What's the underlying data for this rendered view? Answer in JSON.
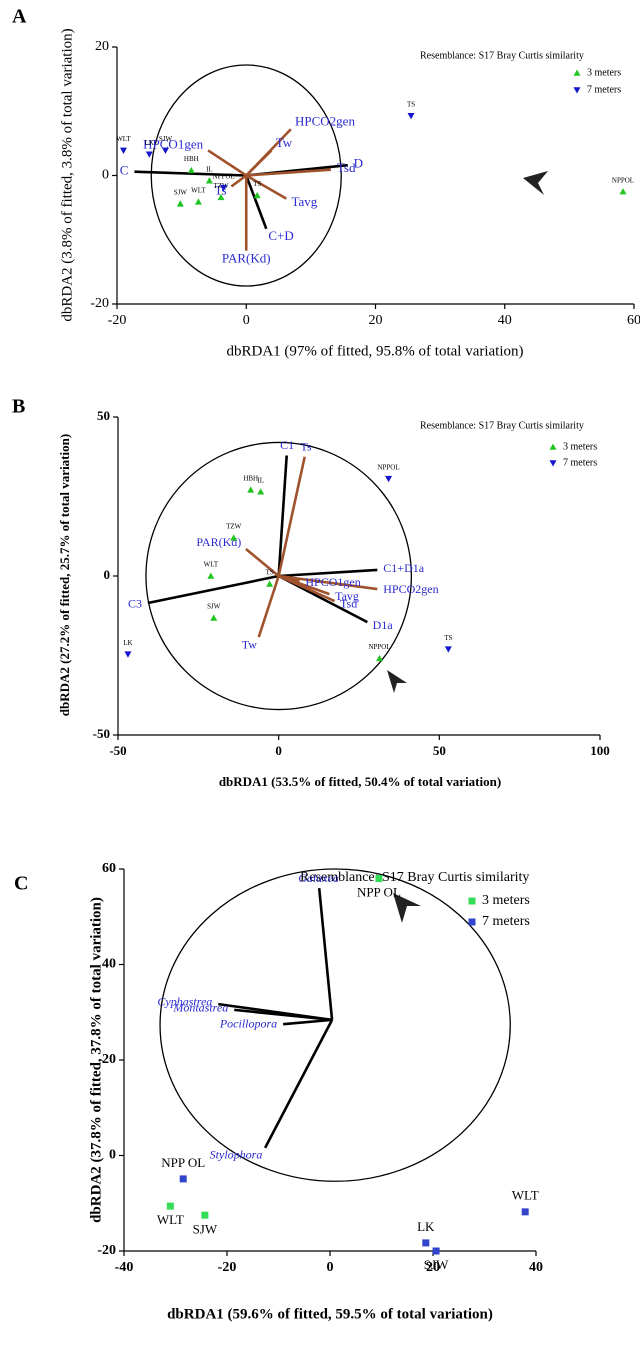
{
  "chart_data": [
    {
      "type": "scatter",
      "panel_label": "A",
      "title": "Resemblance: S17 Bray Curtis similarity",
      "xlabel": "dbRDA1 (97% of fitted, 95.8% of total variation)",
      "ylabel": "dbRDA2 (3.8% of fitted, 3.8% of total variation)",
      "xlim": [
        -20,
        60
      ],
      "ylim": [
        -20,
        20
      ],
      "xticks": [
        -20,
        0,
        20,
        40,
        60
      ],
      "yticks": [
        -20,
        0,
        20
      ],
      "circle": {
        "x": 0,
        "y": 0,
        "rx": 14.7,
        "ry": 17.2
      },
      "origin": [
        0,
        0
      ],
      "series": [
        {
          "name": "3 meters",
          "color": "#22c422",
          "marker": "triangle-up",
          "labels": [
            "HBH",
            "IL",
            "SJW",
            "WLT",
            "TZW",
            "TS",
            "NPPOL"
          ],
          "x": [
            -8.5,
            -5.7,
            -10.2,
            -7.4,
            -3.9,
            1.7,
            58.3
          ],
          "values": [
            0.8,
            -0.8,
            -4.4,
            -4.1,
            -3.4,
            -3.1,
            -2.5
          ]
        },
        {
          "name": "7 meters",
          "color": "#1515cc",
          "marker": "triangle-down",
          "labels": [
            "WLT",
            "LK",
            "SJW",
            "TS",
            "NPPOL"
          ],
          "x": [
            -19,
            -15,
            -12.5,
            25.5,
            -3.5
          ],
          "values": [
            3.9,
            3.3,
            3.9,
            9.3,
            -1.9
          ]
        }
      ],
      "vectors": [
        {
          "name": "C",
          "color": "#000000",
          "x": -17.3,
          "y": 0.6
        },
        {
          "name": "D",
          "color": "#000000",
          "x": 15.7,
          "y": 1.6
        },
        {
          "name": "C+D",
          "color": "#000000",
          "x": 3.1,
          "y": -8.3
        },
        {
          "name": "HPCO2gen",
          "color": "#a0522d",
          "x": 6.9,
          "y": 7.2
        },
        {
          "name": "HPCO1gen",
          "color": "#a0522d",
          "x": -5.9,
          "y": 3.9
        },
        {
          "name": "Tw",
          "color": "#a0522d",
          "x": 3.9,
          "y": 3.9
        },
        {
          "name": "Tsd",
          "color": "#a0522d",
          "x": 13.1,
          "y": 0.9
        },
        {
          "name": "Ts",
          "color": "#a0522d",
          "x": -2.3,
          "y": -1.7
        },
        {
          "name": "Tavg",
          "color": "#a0522d",
          "x": 6.2,
          "y": -3.6
        },
        {
          "name": "PAR(Kd)",
          "color": "#a0522d",
          "x": 0,
          "y": -11.7
        }
      ]
    },
    {
      "type": "scatter",
      "panel_label": "B",
      "title": "Resemblance: S17 Bray Curtis similarity",
      "xlabel": "dbRDA1 (53.5% of fitted, 50.4% of total variation)",
      "ylabel": "dbRDA2 (27.2% of fitted, 25.7% of total variation)",
      "xlim": [
        -50,
        100
      ],
      "ylim": [
        -50,
        50
      ],
      "xticks": [
        -50,
        0,
        50,
        100
      ],
      "yticks": [
        -50,
        0,
        50
      ],
      "circle": {
        "x": 0,
        "y": 0,
        "rx": 41.3,
        "ry": 42
      },
      "origin": [
        0,
        0
      ],
      "series": [
        {
          "name": "3 meters",
          "color": "#22c422",
          "marker": "triangle-up",
          "labels": [
            "HBH",
            "IL",
            "TZW",
            "WLT",
            "SJW",
            "TS",
            "NPPOL"
          ],
          "x": [
            -8.7,
            -5.6,
            -14,
            -21.1,
            -20.2,
            -2.8,
            31.4
          ],
          "values": [
            27.1,
            26.5,
            12,
            0,
            -13.2,
            -2.5,
            -25.9
          ]
        },
        {
          "name": "7 meters",
          "color": "#1515cc",
          "marker": "triangle-down",
          "labels": [
            "NPPOL",
            "LK",
            "TS"
          ],
          "x": [
            34.2,
            -46.9,
            52.8
          ],
          "values": [
            30.6,
            -24.6,
            -23
          ]
        }
      ],
      "vectors": [
        {
          "name": "C1",
          "color": "#000000",
          "x": 2.5,
          "y": 37.9
        },
        {
          "name": "C3",
          "color": "#000000",
          "x": -40.7,
          "y": -8.5
        },
        {
          "name": "C1+D1a",
          "color": "#000000",
          "x": 30.7,
          "y": 1.9
        },
        {
          "name": "D1a",
          "color": "#000000",
          "x": 27.6,
          "y": -14.5
        },
        {
          "name": "Ts",
          "color": "#a0522d",
          "x": 8.1,
          "y": 37.5
        },
        {
          "name": "PAR(Kd)",
          "color": "#a0522d",
          "x": -10.2,
          "y": 8.5
        },
        {
          "name": "Tw",
          "color": "#a0522d",
          "x": -6.2,
          "y": -19.2
        },
        {
          "name": "HPCO2gen",
          "color": "#a0522d",
          "x": 30.7,
          "y": -4.1
        },
        {
          "name": "Tavg",
          "color": "#a0522d",
          "x": 15.8,
          "y": -5.7
        },
        {
          "name": "Tsd",
          "color": "#a0522d",
          "x": 17.4,
          "y": -7.9
        },
        {
          "name": "HPCO1gen",
          "color": "#a0522d",
          "x": 6.5,
          "y": -1.6
        }
      ]
    },
    {
      "type": "scatter",
      "panel_label": "C",
      "title": "Resemblance: S17 Bray Curtis similarity",
      "xlabel": "dbRDA1 (59.6% of fitted, 59.5% of total variation)",
      "ylabel": "dbRDA2 (37.8% of fitted, 37.8% of total variation)",
      "xlim": [
        -40,
        40
      ],
      "ylim": [
        -20,
        60
      ],
      "xticks": [
        -40,
        -20,
        0,
        20,
        40
      ],
      "yticks": [
        -20,
        0,
        20,
        40,
        60
      ],
      "circle": {
        "x": 1,
        "y": 27.3,
        "rx": 34,
        "ry": 32.7
      },
      "origin": [
        0.4,
        28.4
      ],
      "series": [
        {
          "name": "3 meters",
          "color": "#33dd55",
          "marker": "square",
          "labels": [
            "NPP OL",
            "WLT",
            "SJW"
          ],
          "x": [
            9.5,
            -31,
            -24.3
          ],
          "values": [
            58,
            -10.6,
            -12.5
          ]
        },
        {
          "name": "7 meters",
          "color": "#3344cc",
          "marker": "square",
          "labels": [
            "NPP OL",
            "LK",
            "SJW",
            "WLT"
          ],
          "x": [
            -28.5,
            18.6,
            20.6,
            37.9
          ],
          "values": [
            -4.9,
            -18.3,
            -20,
            -11.8
          ]
        }
      ],
      "vectors": [
        {
          "name": "Galaxea",
          "color": "#000000",
          "x": -2.1,
          "y": 56
        },
        {
          "name": "Cyphastrea",
          "color": "#000000",
          "x": -21.7,
          "y": 31.7
        },
        {
          "name": "Montastrea",
          "color": "#000000",
          "x": -18.6,
          "y": 30.5
        },
        {
          "name": "Pocillopora",
          "color": "#000000",
          "x": -9.1,
          "y": 27.5
        },
        {
          "name": "Stylophora",
          "color": "#000000",
          "x": -12.6,
          "y": 1.6
        }
      ]
    }
  ]
}
